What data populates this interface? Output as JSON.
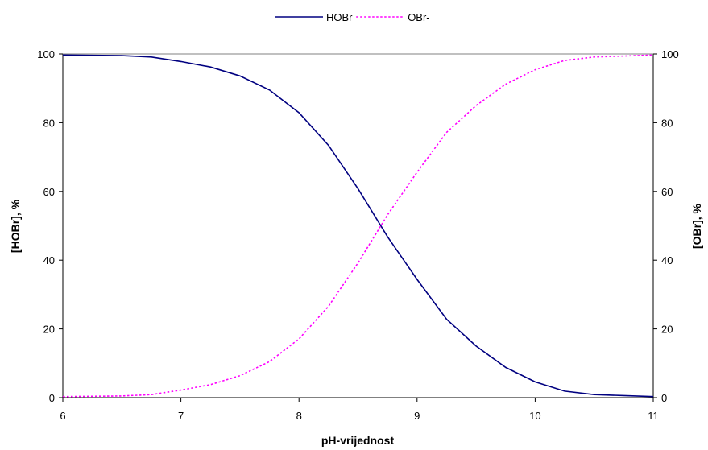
{
  "chart_data": {
    "type": "line",
    "xlabel": "pH-vrijednost",
    "ylabel_left": "[HOBr], %",
    "ylabel_right": "[OBr], %",
    "xlim": [
      6,
      11
    ],
    "ylim": [
      0,
      100
    ],
    "x_ticks": [
      6,
      7,
      8,
      9,
      10,
      11
    ],
    "y_ticks": [
      0,
      20,
      40,
      60,
      80,
      100
    ],
    "grid": false,
    "legend_position": "top-center",
    "colors": {
      "HOBr": "#000080",
      "OBr-": "#ff00ff"
    },
    "x": [
      6.0,
      6.25,
      6.5,
      6.75,
      7.0,
      7.25,
      7.5,
      7.75,
      8.0,
      8.25,
      8.5,
      8.75,
      9.0,
      9.25,
      9.5,
      9.75,
      10.0,
      10.25,
      10.5,
      10.75,
      11.0
    ],
    "series": [
      {
        "name": "HOBr",
        "style": "solid",
        "values": [
          99.7,
          99.6,
          99.5,
          99.1,
          97.8,
          96.2,
          93.6,
          89.5,
          82.9,
          73.4,
          60.8,
          46.8,
          34.4,
          22.8,
          15.0,
          8.8,
          4.6,
          1.9,
          0.9,
          0.6,
          0.3
        ]
      },
      {
        "name": "OBr-",
        "style": "dotted",
        "values": [
          0.3,
          0.4,
          0.5,
          0.9,
          2.2,
          3.8,
          6.4,
          10.5,
          17.1,
          26.6,
          39.2,
          53.2,
          65.6,
          77.2,
          85.0,
          91.2,
          95.4,
          98.1,
          99.1,
          99.4,
          99.7
        ]
      }
    ]
  }
}
